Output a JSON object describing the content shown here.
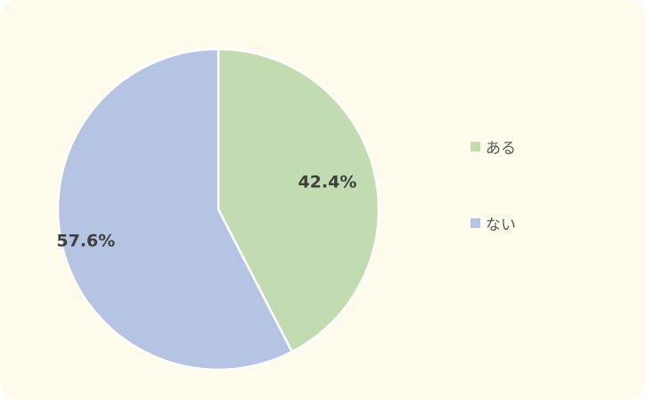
{
  "chart_data": {
    "type": "pie",
    "categories": [
      "ある",
      "ない"
    ],
    "values": [
      42.4,
      57.6
    ],
    "labels": [
      "42.4%",
      "57.6%"
    ],
    "colors": [
      "#c3dbb0",
      "#b4c4e2"
    ],
    "start_angle": "12 o'clock, clockwise",
    "legend_position": "right"
  },
  "legend": {
    "items": [
      {
        "label": "ある",
        "color": "#c3dbb0"
      },
      {
        "label": "ない",
        "color": "#b4c4e2"
      }
    ]
  }
}
